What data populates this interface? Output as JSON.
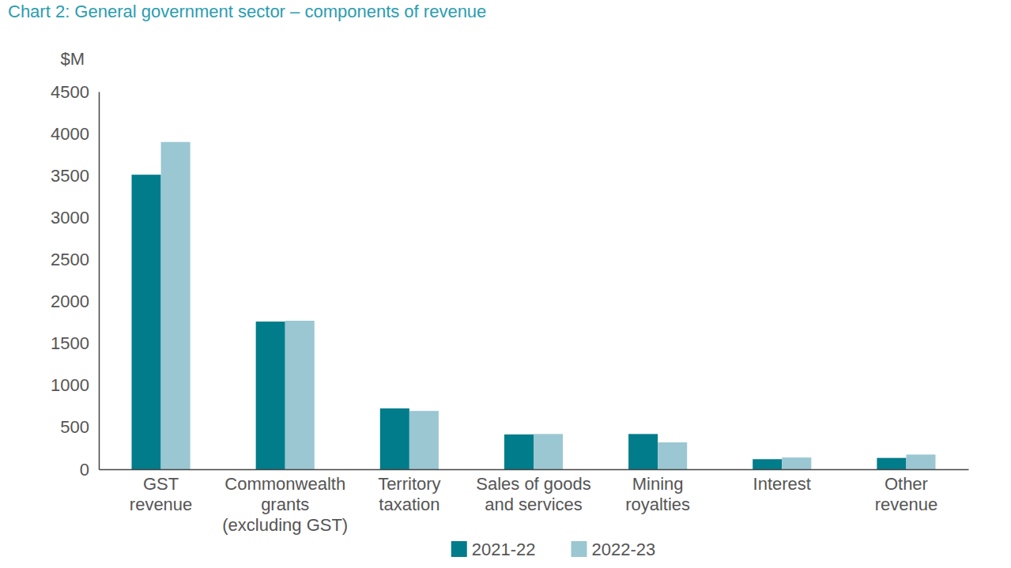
{
  "chart_data": {
    "type": "bar",
    "title": "Chart 2: General government sector – components of revenue",
    "y_label": "$M",
    "categories": [
      "GST\nrevenue",
      "Commonwealth\ngrants\n(excluding GST)",
      "Territory\ntaxation",
      "Sales of goods\nand services",
      "Mining\nroyalties",
      "Interest",
      "Other\nrevenue"
    ],
    "series": [
      {
        "name": "2021-22",
        "color": "#007c8a",
        "values": [
          3510,
          1760,
          725,
          415,
          420,
          120,
          135
        ]
      },
      {
        "name": "2022-23",
        "color": "#9ac7d2",
        "values": [
          3900,
          1770,
          695,
          420,
          320,
          140,
          175
        ]
      }
    ],
    "ylim": [
      0,
      4500
    ],
    "yticks": [
      0,
      500,
      1000,
      1500,
      2000,
      2500,
      3000,
      3500,
      4000,
      4500
    ],
    "grid": false,
    "legend": "bottom"
  }
}
